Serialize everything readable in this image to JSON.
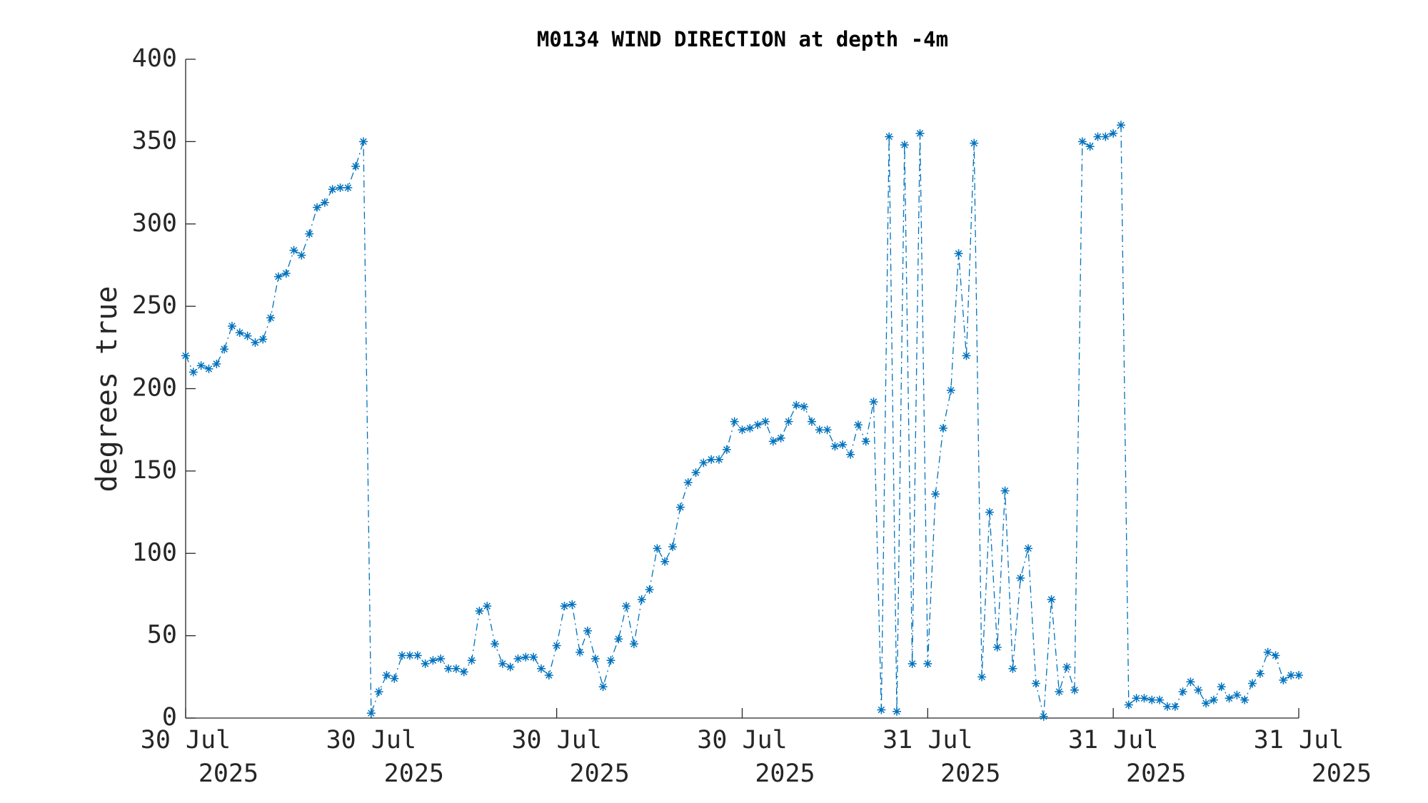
{
  "chart_data": {
    "type": "line",
    "title": "M0134 WIND DIRECTION at depth -4m",
    "ylabel": "degrees true",
    "color": "#0072bd",
    "marker": "*",
    "line_style": "dashdot",
    "xlim": [
      0,
      36
    ],
    "ylim": [
      0,
      400
    ],
    "yticks": [
      0,
      50,
      100,
      150,
      200,
      250,
      300,
      350,
      400
    ],
    "xticks": [
      {
        "value": 0,
        "label": "30 Jul 2025"
      },
      {
        "value": 6,
        "label": "30 Jul 2025"
      },
      {
        "value": 12,
        "label": "30 Jul 2025"
      },
      {
        "value": 18,
        "label": "30 Jul 2025"
      },
      {
        "value": 24,
        "label": "31 Jul 2025"
      },
      {
        "value": 30,
        "label": "31 Jul 2025"
      },
      {
        "value": 36,
        "label": "31 Jul 2025"
      }
    ],
    "x": [
      0,
      0.25,
      0.5,
      0.75,
      1,
      1.25,
      1.5,
      1.75,
      2,
      2.25,
      2.5,
      2.75,
      3,
      3.25,
      3.5,
      3.75,
      4,
      4.25,
      4.5,
      4.75,
      5,
      5.25,
      5.5,
      5.75,
      6,
      6.25,
      6.5,
      6.75,
      7,
      7.25,
      7.5,
      7.75,
      8,
      8.25,
      8.5,
      8.75,
      9,
      9.25,
      9.5,
      9.75,
      10,
      10.25,
      10.5,
      10.75,
      11,
      11.25,
      11.5,
      11.75,
      12,
      12.25,
      12.5,
      12.75,
      13,
      13.25,
      13.5,
      13.75,
      14,
      14.25,
      14.5,
      14.75,
      15,
      15.25,
      15.5,
      15.75,
      16,
      16.25,
      16.5,
      16.75,
      17,
      17.25,
      17.5,
      17.75,
      18,
      18.25,
      18.5,
      18.75,
      19,
      19.25,
      19.5,
      19.75,
      20,
      20.25,
      20.5,
      20.75,
      21,
      21.25,
      21.5,
      21.75,
      22,
      22.25,
      22.5,
      22.75,
      23,
      23.25,
      23.5,
      23.75,
      24,
      24.25,
      24.5,
      24.75,
      25,
      25.25,
      25.5,
      25.75,
      26,
      26.25,
      26.5,
      26.75,
      27,
      27.25,
      27.5,
      27.75,
      28,
      28.25,
      28.5,
      28.75,
      29,
      29.25,
      29.5,
      29.75,
      30,
      30.25,
      30.5,
      30.75,
      31,
      31.25,
      31.5,
      31.75,
      32,
      32.25,
      32.5,
      32.75,
      33,
      33.25,
      33.5,
      33.75,
      34,
      34.25,
      34.5,
      34.75,
      35,
      35.25,
      35.5,
      35.75,
      36
    ],
    "values": [
      220,
      210,
      214,
      212,
      215,
      224,
      238,
      234,
      232,
      228,
      230,
      243,
      268,
      270,
      284,
      281,
      294,
      310,
      313,
      321,
      322,
      322,
      335,
      350,
      3,
      16,
      26,
      24,
      38,
      38,
      38,
      33,
      35,
      36,
      30,
      30,
      28,
      35,
      65,
      68,
      45,
      33,
      31,
      36,
      37,
      37,
      30,
      26,
      44,
      68,
      69,
      40,
      53,
      36,
      19,
      35,
      48,
      68,
      45,
      72,
      78,
      103,
      95,
      104,
      128,
      143,
      149,
      155,
      157,
      157,
      163,
      180,
      175,
      176,
      178,
      180,
      168,
      170,
      180,
      190,
      189,
      180,
      175,
      175,
      165,
      166,
      160,
      178,
      168,
      192,
      5,
      353,
      4,
      348,
      33,
      355,
      33,
      136,
      176,
      199,
      282,
      220,
      349,
      25,
      125,
      43,
      138,
      30,
      85,
      103,
      21,
      1,
      72,
      16,
      31,
      17,
      350,
      347,
      353,
      353,
      355,
      360,
      8,
      12,
      12,
      11,
      11,
      7,
      7,
      16,
      22,
      17,
      9,
      11,
      19,
      12,
      14,
      11,
      21,
      27,
      40,
      38,
      23,
      26,
      26
    ]
  }
}
